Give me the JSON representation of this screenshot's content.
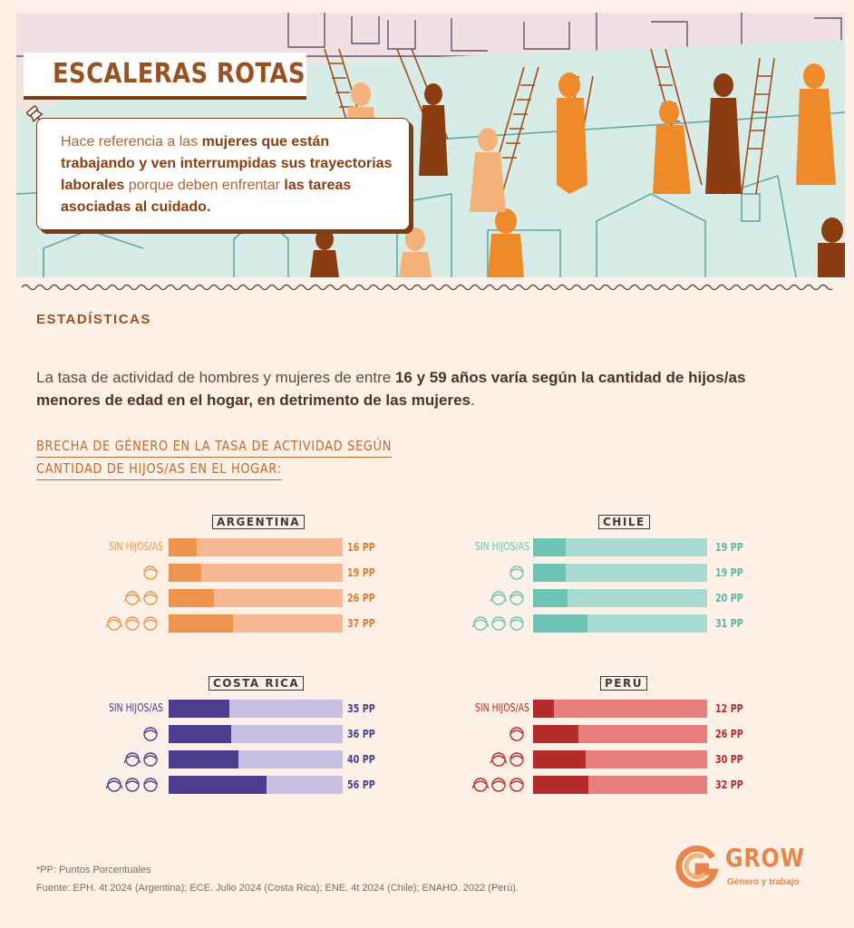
{
  "hero": {
    "title": "ESCALERAS ROTAS",
    "definition": {
      "p1": "Hace referencia a las ",
      "b1": "mujeres que están trabajando y ven interrumpidas sus trayectorias laborales",
      "p2": " porque deben enfrentar ",
      "b2": "las tareas asociadas al cuidado."
    }
  },
  "section_title": "ESTADÍSTICAS",
  "intro": {
    "p1": "La tasa de actividad de hombres y mujeres de entre ",
    "b1": "16 y 59 años varía según la cantidad de hijos/as menores de edad en el hogar, en detrimento de las mujeres",
    "p2": "."
  },
  "chart_subtitle": {
    "line1": "BRECHA DE GÉNERO EN LA TASA DE ACTIVIDAD SEGÚN",
    "line2": "CANTIDAD DE HIJOS/AS EN EL HOGAR:"
  },
  "colors": {
    "argentina": {
      "fill": "#ef944c",
      "track": "#f6b792",
      "text": "#ef944c",
      "value": "#e07a2e"
    },
    "chile": {
      "fill": "#6cc4b6",
      "track": "#a9dbd2",
      "text": "#6cc4b6",
      "value": "#5bb5a7"
    },
    "costa_rica": {
      "fill": "#4c3d8e",
      "track": "#c7c0e0",
      "text": "#4c3d8e",
      "value": "#4c3d8e"
    },
    "peru": {
      "fill": "#b52a2a",
      "track": "#e77e7e",
      "text": "#b52a2a",
      "value": "#b52a2a"
    }
  },
  "chart_data": [
    {
      "type": "bar",
      "country": "ARGENTINA",
      "categories": [
        "SIN HIJOS/AS",
        "1 hijo/a",
        "2 hijos/as",
        "3 o más hijos/as"
      ],
      "values": [
        16,
        19,
        26,
        37
      ],
      "labels": [
        "16 PP",
        "19 PP",
        "26 PP",
        "37 PP"
      ],
      "ylim": [
        0,
        100
      ]
    },
    {
      "type": "bar",
      "country": "CHILE",
      "categories": [
        "SIN HIJOS/AS",
        "1 hijo/a",
        "2 hijos/as",
        "3 o más hijos/as"
      ],
      "values": [
        19,
        19,
        20,
        31
      ],
      "labels": [
        "19 PP",
        "19 PP",
        "20 PP",
        "31 PP"
      ],
      "ylim": [
        0,
        100
      ]
    },
    {
      "type": "bar",
      "country": "COSTA RICA",
      "categories": [
        "SIN HIJOS/AS",
        "1 hijo/a",
        "2 hijos/as",
        "3 o más hijos/as"
      ],
      "values": [
        35,
        36,
        40,
        56
      ],
      "labels": [
        "35 PP",
        "36 PP",
        "40 PP",
        "56 PP"
      ],
      "ylim": [
        0,
        100
      ]
    },
    {
      "type": "bar",
      "country": "PERÚ",
      "categories": [
        "SIN HIJOS/AS",
        "1 hijo/a",
        "2 hijos/as",
        "3 o más hijos/as"
      ],
      "values": [
        12,
        26,
        30,
        32
      ],
      "labels": [
        "12 PP",
        "26 PP",
        "30 PP",
        "32 PP"
      ],
      "ylim": [
        0,
        100
      ]
    }
  ],
  "footer": {
    "note": "*PP: Puntos Porcentuales",
    "source": "Fuente: EPH. 4t 2024 (Argentina); ECE. Julio 2024 (Costa Rica); ENE. 4t 2024 (Chile); ENAHO. 2022 (Perú)."
  },
  "logo": {
    "name": "GROW",
    "tagline": "Género y trabajo"
  }
}
